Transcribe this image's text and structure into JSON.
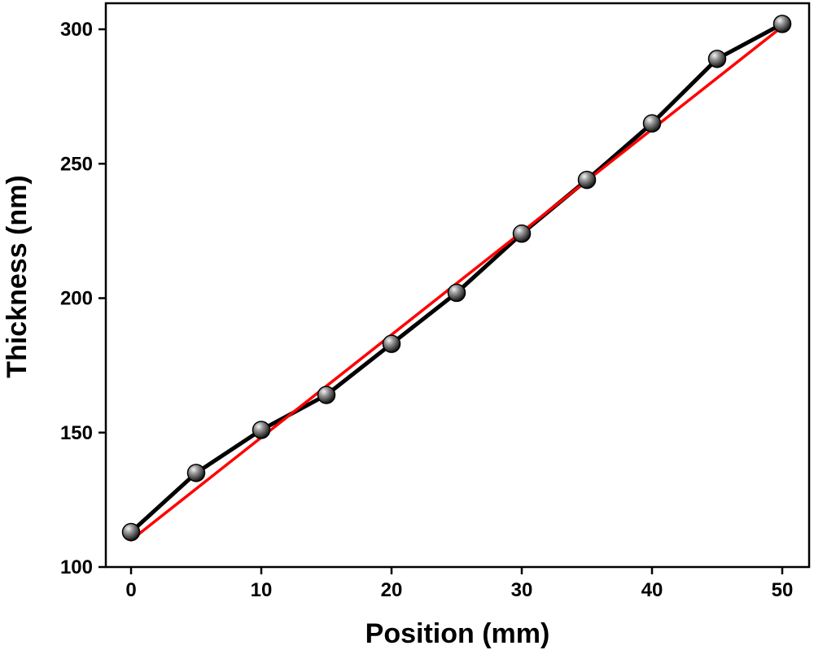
{
  "chart_data": {
    "type": "line",
    "title": "",
    "xlabel": "Position (mm)",
    "ylabel": "Thickness (nm)",
    "xlim": [
      -2,
      52
    ],
    "ylim": [
      100,
      310
    ],
    "x_ticks": [
      0,
      10,
      20,
      30,
      40,
      50
    ],
    "x_tick_labels": [
      "0",
      "10",
      "20",
      "30",
      "40",
      "50"
    ],
    "y_ticks": [
      100,
      150,
      200,
      250,
      300
    ],
    "y_tick_labels": [
      "100",
      "150",
      "200",
      "250",
      "300"
    ],
    "grid": false,
    "series": [
      {
        "kind": "data",
        "line_color": "#000000",
        "marker": "sphere",
        "marker_color": "#555555",
        "x": [
          0,
          5,
          10,
          15,
          20,
          25,
          30,
          35,
          40,
          45,
          50
        ],
        "y": [
          113,
          135,
          151,
          164,
          183,
          202,
          224,
          244,
          265,
          289,
          302
        ]
      },
      {
        "kind": "linear-fit",
        "line_color": "#ff0000",
        "x": [
          0,
          50
        ],
        "y": [
          110,
          301
        ]
      }
    ]
  }
}
